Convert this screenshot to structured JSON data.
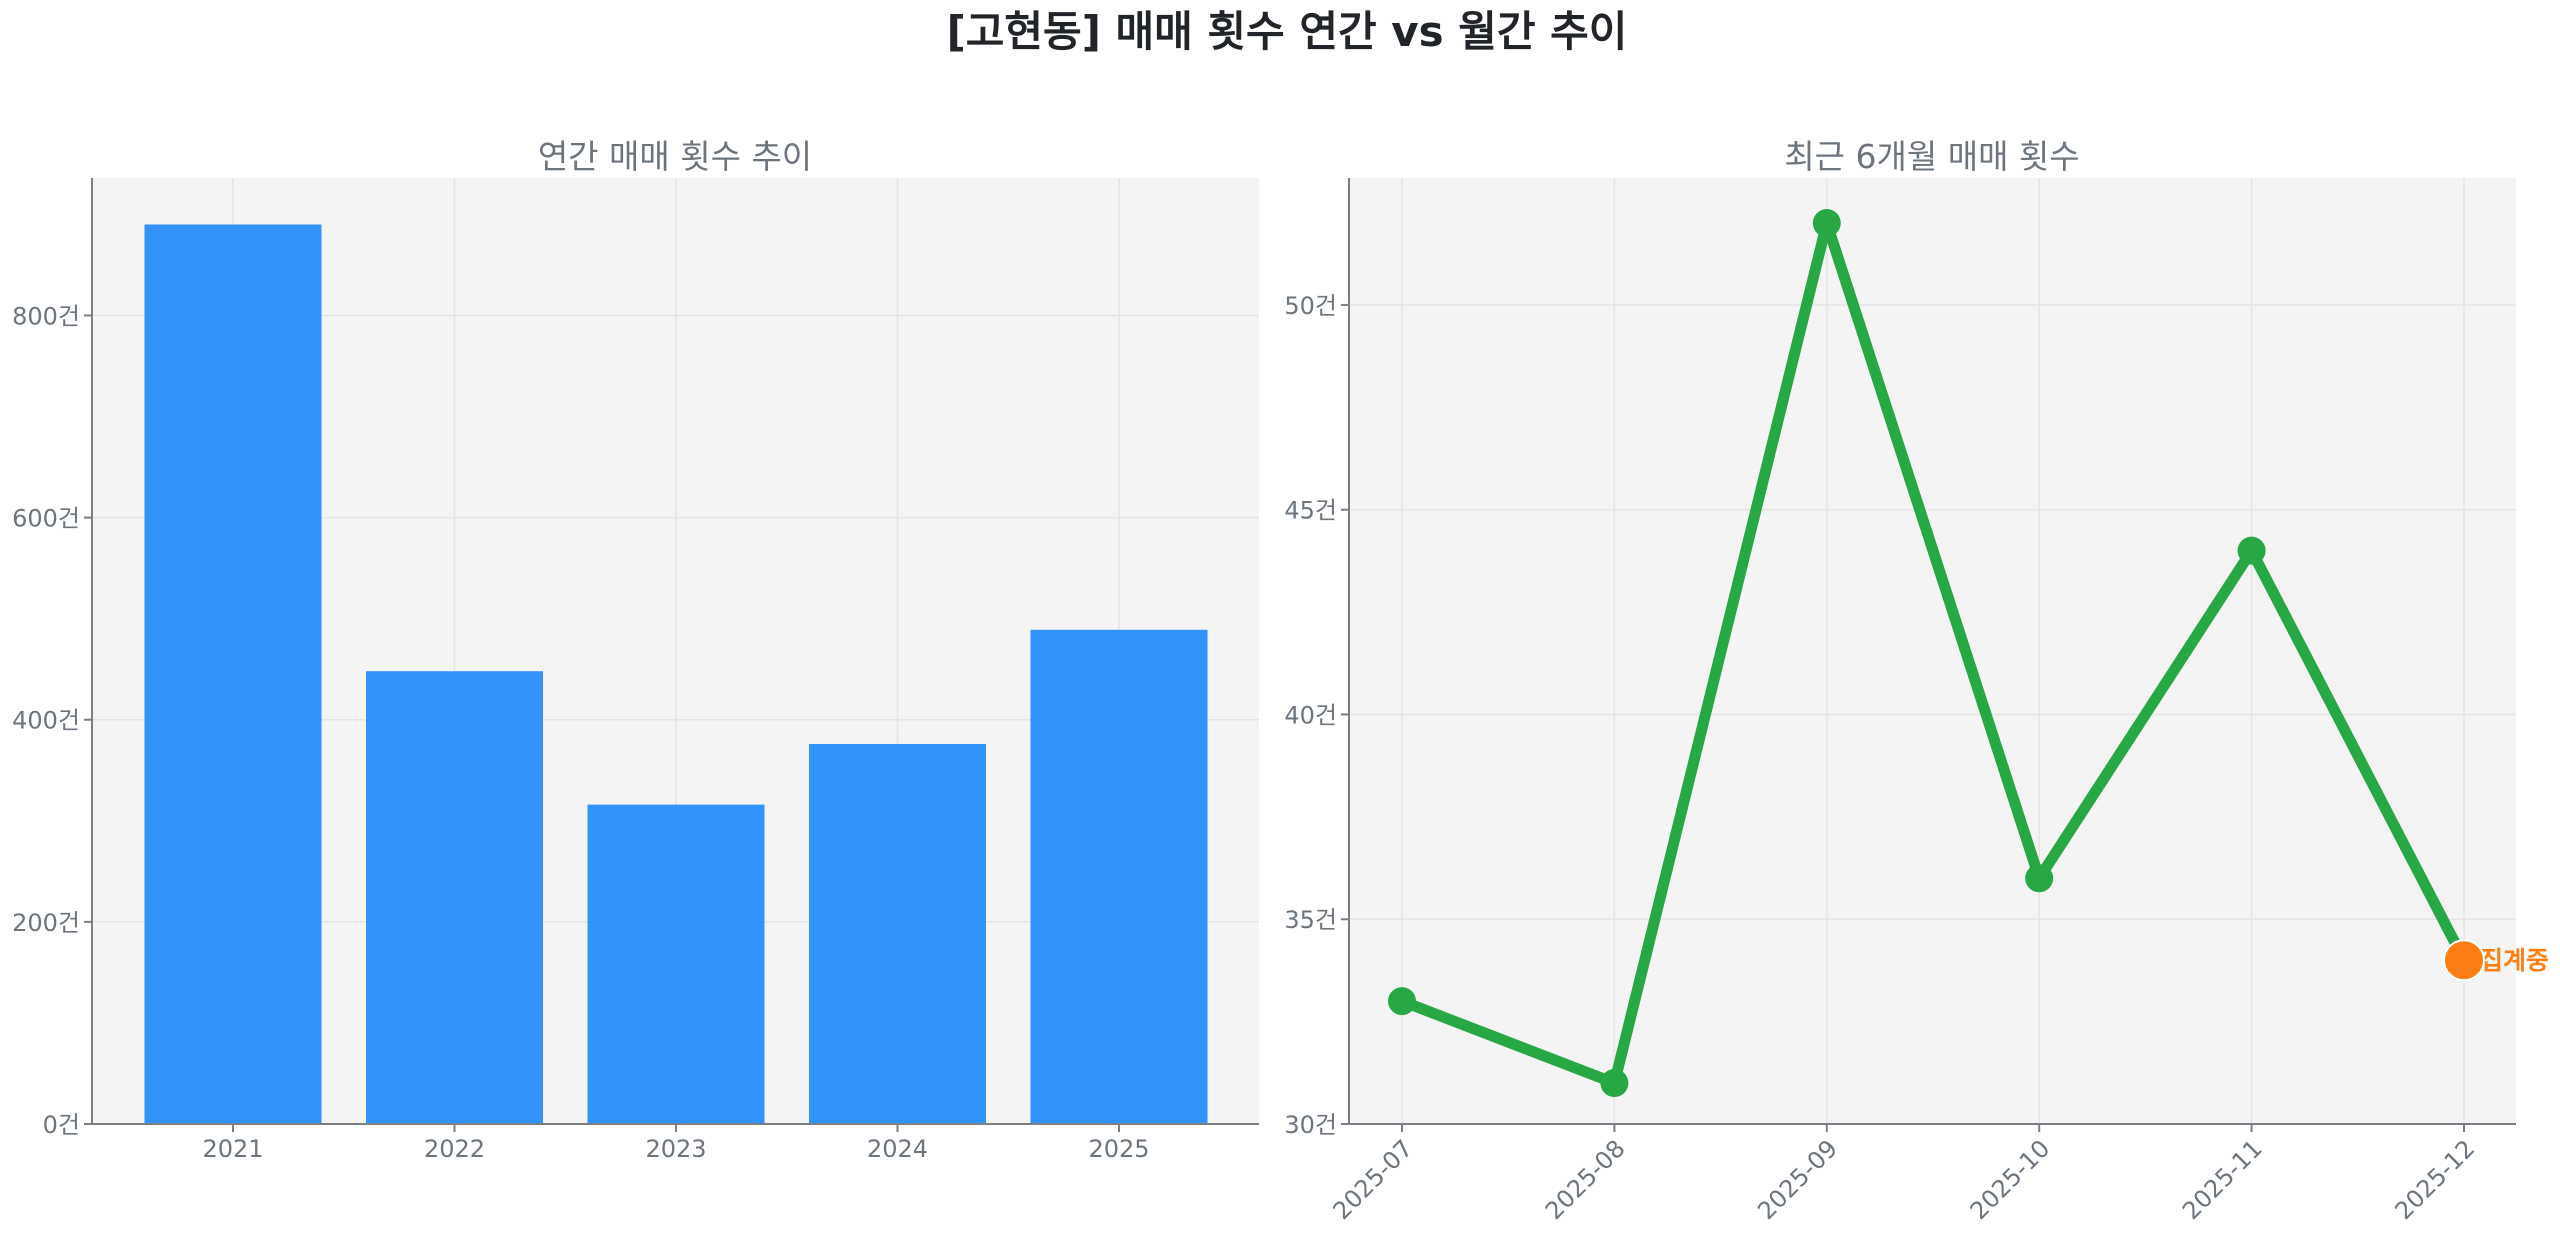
{
  "figure": {
    "title": "[고현동] 매매 횟수 연간 vs 월간 추이"
  },
  "chart_data": [
    {
      "type": "bar",
      "title": "연간 매매 횟수 추이",
      "xlabel": "",
      "ylabel": "",
      "categories": [
        "2021",
        "2022",
        "2023",
        "2024",
        "2025"
      ],
      "values": [
        890,
        448,
        316,
        376,
        489
      ],
      "ylim": [
        0,
        936
      ],
      "yticks": [
        0,
        200,
        400,
        600,
        800
      ],
      "ytick_labels": [
        "0건",
        "200건",
        "400건",
        "600건",
        "800건"
      ],
      "grid": true,
      "color": "#3192fa",
      "background": "#f4f4f4"
    },
    {
      "type": "line",
      "title": "최근 6개월 매매 횟수",
      "xlabel": "",
      "ylabel": "",
      "x": [
        "2025-07",
        "2025-08",
        "2025-09",
        "2025-10",
        "2025-11",
        "2025-12"
      ],
      "values": [
        33,
        31,
        52,
        36,
        44,
        34
      ],
      "ylim": [
        30,
        53.1
      ],
      "yticks": [
        30,
        35,
        40,
        45,
        50
      ],
      "ytick_labels": [
        "30건",
        "35건",
        "40건",
        "45건",
        "50건"
      ],
      "xtick_rotation": 45,
      "grid": true,
      "color": "#28a745",
      "highlight": {
        "index": 5,
        "color": "#fd7e14",
        "label": "집계중"
      },
      "background": "#f4f4f4"
    }
  ]
}
